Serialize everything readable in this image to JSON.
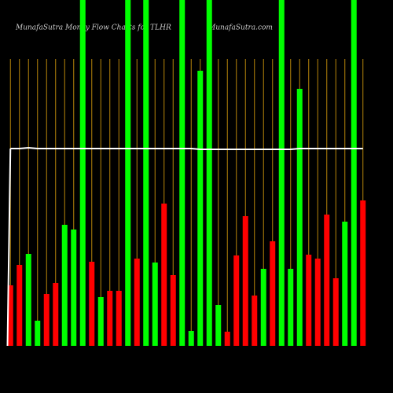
{
  "chart_data": {
    "type": "bar",
    "title": "MunafaSutra  Money Flow  Charts for TLHR",
    "subtitle": "MunafaSutra.com",
    "categories": [
      null,
      null,
      null,
      null,
      null,
      null,
      null,
      null,
      null,
      null,
      null,
      null,
      null,
      null,
      null,
      null,
      null,
      null,
      null,
      null,
      null,
      null,
      null,
      null,
      null,
      null,
      null,
      null,
      null,
      null,
      null,
      null,
      null,
      null,
      null,
      null,
      null,
      null,
      null,
      null
    ],
    "values": [
      77,
      103,
      117,
      32,
      66,
      80,
      154,
      148,
      440,
      107,
      62,
      70,
      70,
      440,
      111,
      440,
      106,
      181,
      90,
      440,
      19,
      350,
      440,
      52,
      18,
      115,
      165,
      64,
      98,
      133,
      440,
      98,
      327,
      116,
      111,
      167,
      86,
      158,
      440,
      185
    ],
    "colors": [
      "#ff0000",
      "#ff0000",
      "#00ff00",
      "#00ff00",
      "#ff0000",
      "#ff0000",
      "#00ff00",
      "#00ff00",
      "#00ff00",
      "#ff0000",
      "#00ff00",
      "#ff0000",
      "#ff0000",
      "#00ff00",
      "#ff0000",
      "#00ff00",
      "#00ff00",
      "#ff0000",
      "#ff0000",
      "#00ff00",
      "#00ff00",
      "#00ff00",
      "#00ff00",
      "#00ff00",
      "#ff0000",
      "#ff0000",
      "#ff0000",
      "#ff0000",
      "#00ff00",
      "#ff0000",
      "#00ff00",
      "#00ff00",
      "#00ff00",
      "#ff0000",
      "#ff0000",
      "#ff0000",
      "#ff0000",
      "#00ff00",
      "#00ff00",
      "#ff0000"
    ],
    "line": [
      251,
      251,
      252,
      251,
      251,
      251,
      251,
      251,
      251,
      251,
      251,
      251,
      251,
      251,
      251,
      251,
      251,
      251,
      251,
      251,
      251,
      250,
      250,
      250,
      250,
      250,
      250,
      250,
      250,
      250,
      250,
      250,
      251,
      251,
      251,
      251,
      251,
      251,
      251,
      251
    ],
    "line_color": "#ffffff",
    "grid_color": "#b8860b",
    "ylim": [
      0,
      440
    ],
    "grid": true
  }
}
